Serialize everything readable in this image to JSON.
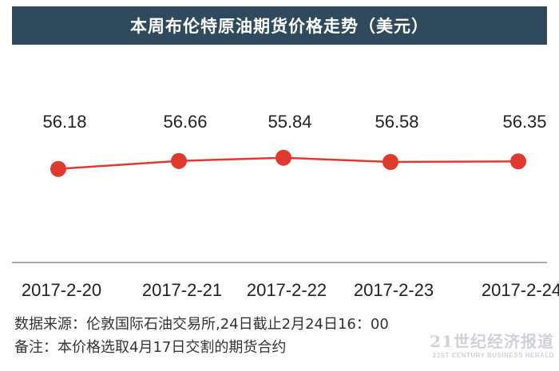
{
  "chart_data": {
    "type": "line",
    "title": "本周布伦特原油期货价格走势（美元）",
    "categories": [
      "2017-2-20",
      "2017-2-21",
      "2017-2-22",
      "2017-2-23",
      "2017-2-24"
    ],
    "series": [
      {
        "values": [
          56.18,
          56.66,
          55.84,
          56.58,
          56.35
        ]
      }
    ],
    "value_labels": [
      "56.18",
      "56.66",
      "55.84",
      "56.58",
      "56.35"
    ],
    "point_y_levels": [
      55.45,
      55.6,
      55.66,
      55.58,
      55.59
    ],
    "colors": {
      "line": "#e03a2f",
      "title_bg": "#2f4a5c",
      "axis": "#555555"
    }
  },
  "notes": {
    "source": "数据来源：伦敦国际石油交易所,24日截止2月24日16：00",
    "remark": "备注：本价格选取4月17日交割的期货合约"
  },
  "watermark": {
    "main": "21世纪经济报道",
    "sub": "21ST CENTURY BUSINESS HERALD"
  }
}
